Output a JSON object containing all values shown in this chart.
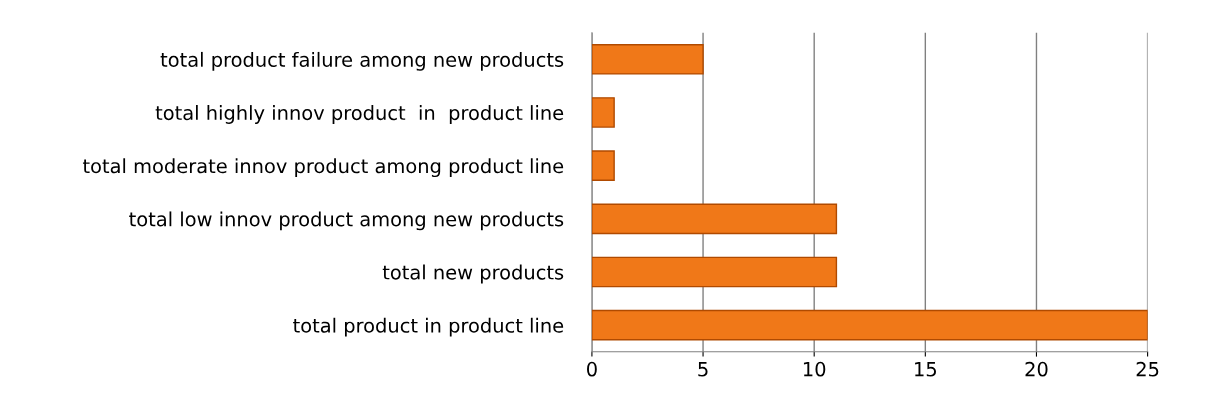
{
  "chart_data": {
    "type": "bar",
    "orientation": "horizontal",
    "categories": [
      "total product failure among new products",
      "total highly innov product  in  product line",
      "total moderate innov product among product line",
      "total low innov product among new products",
      "total new products",
      "total product in product line"
    ],
    "values": [
      5,
      1,
      1,
      11,
      11,
      25
    ],
    "color": "#f07818",
    "xlim": [
      0,
      25
    ],
    "xticks": [
      0,
      5,
      10,
      15,
      20,
      25
    ],
    "grid": "x"
  }
}
